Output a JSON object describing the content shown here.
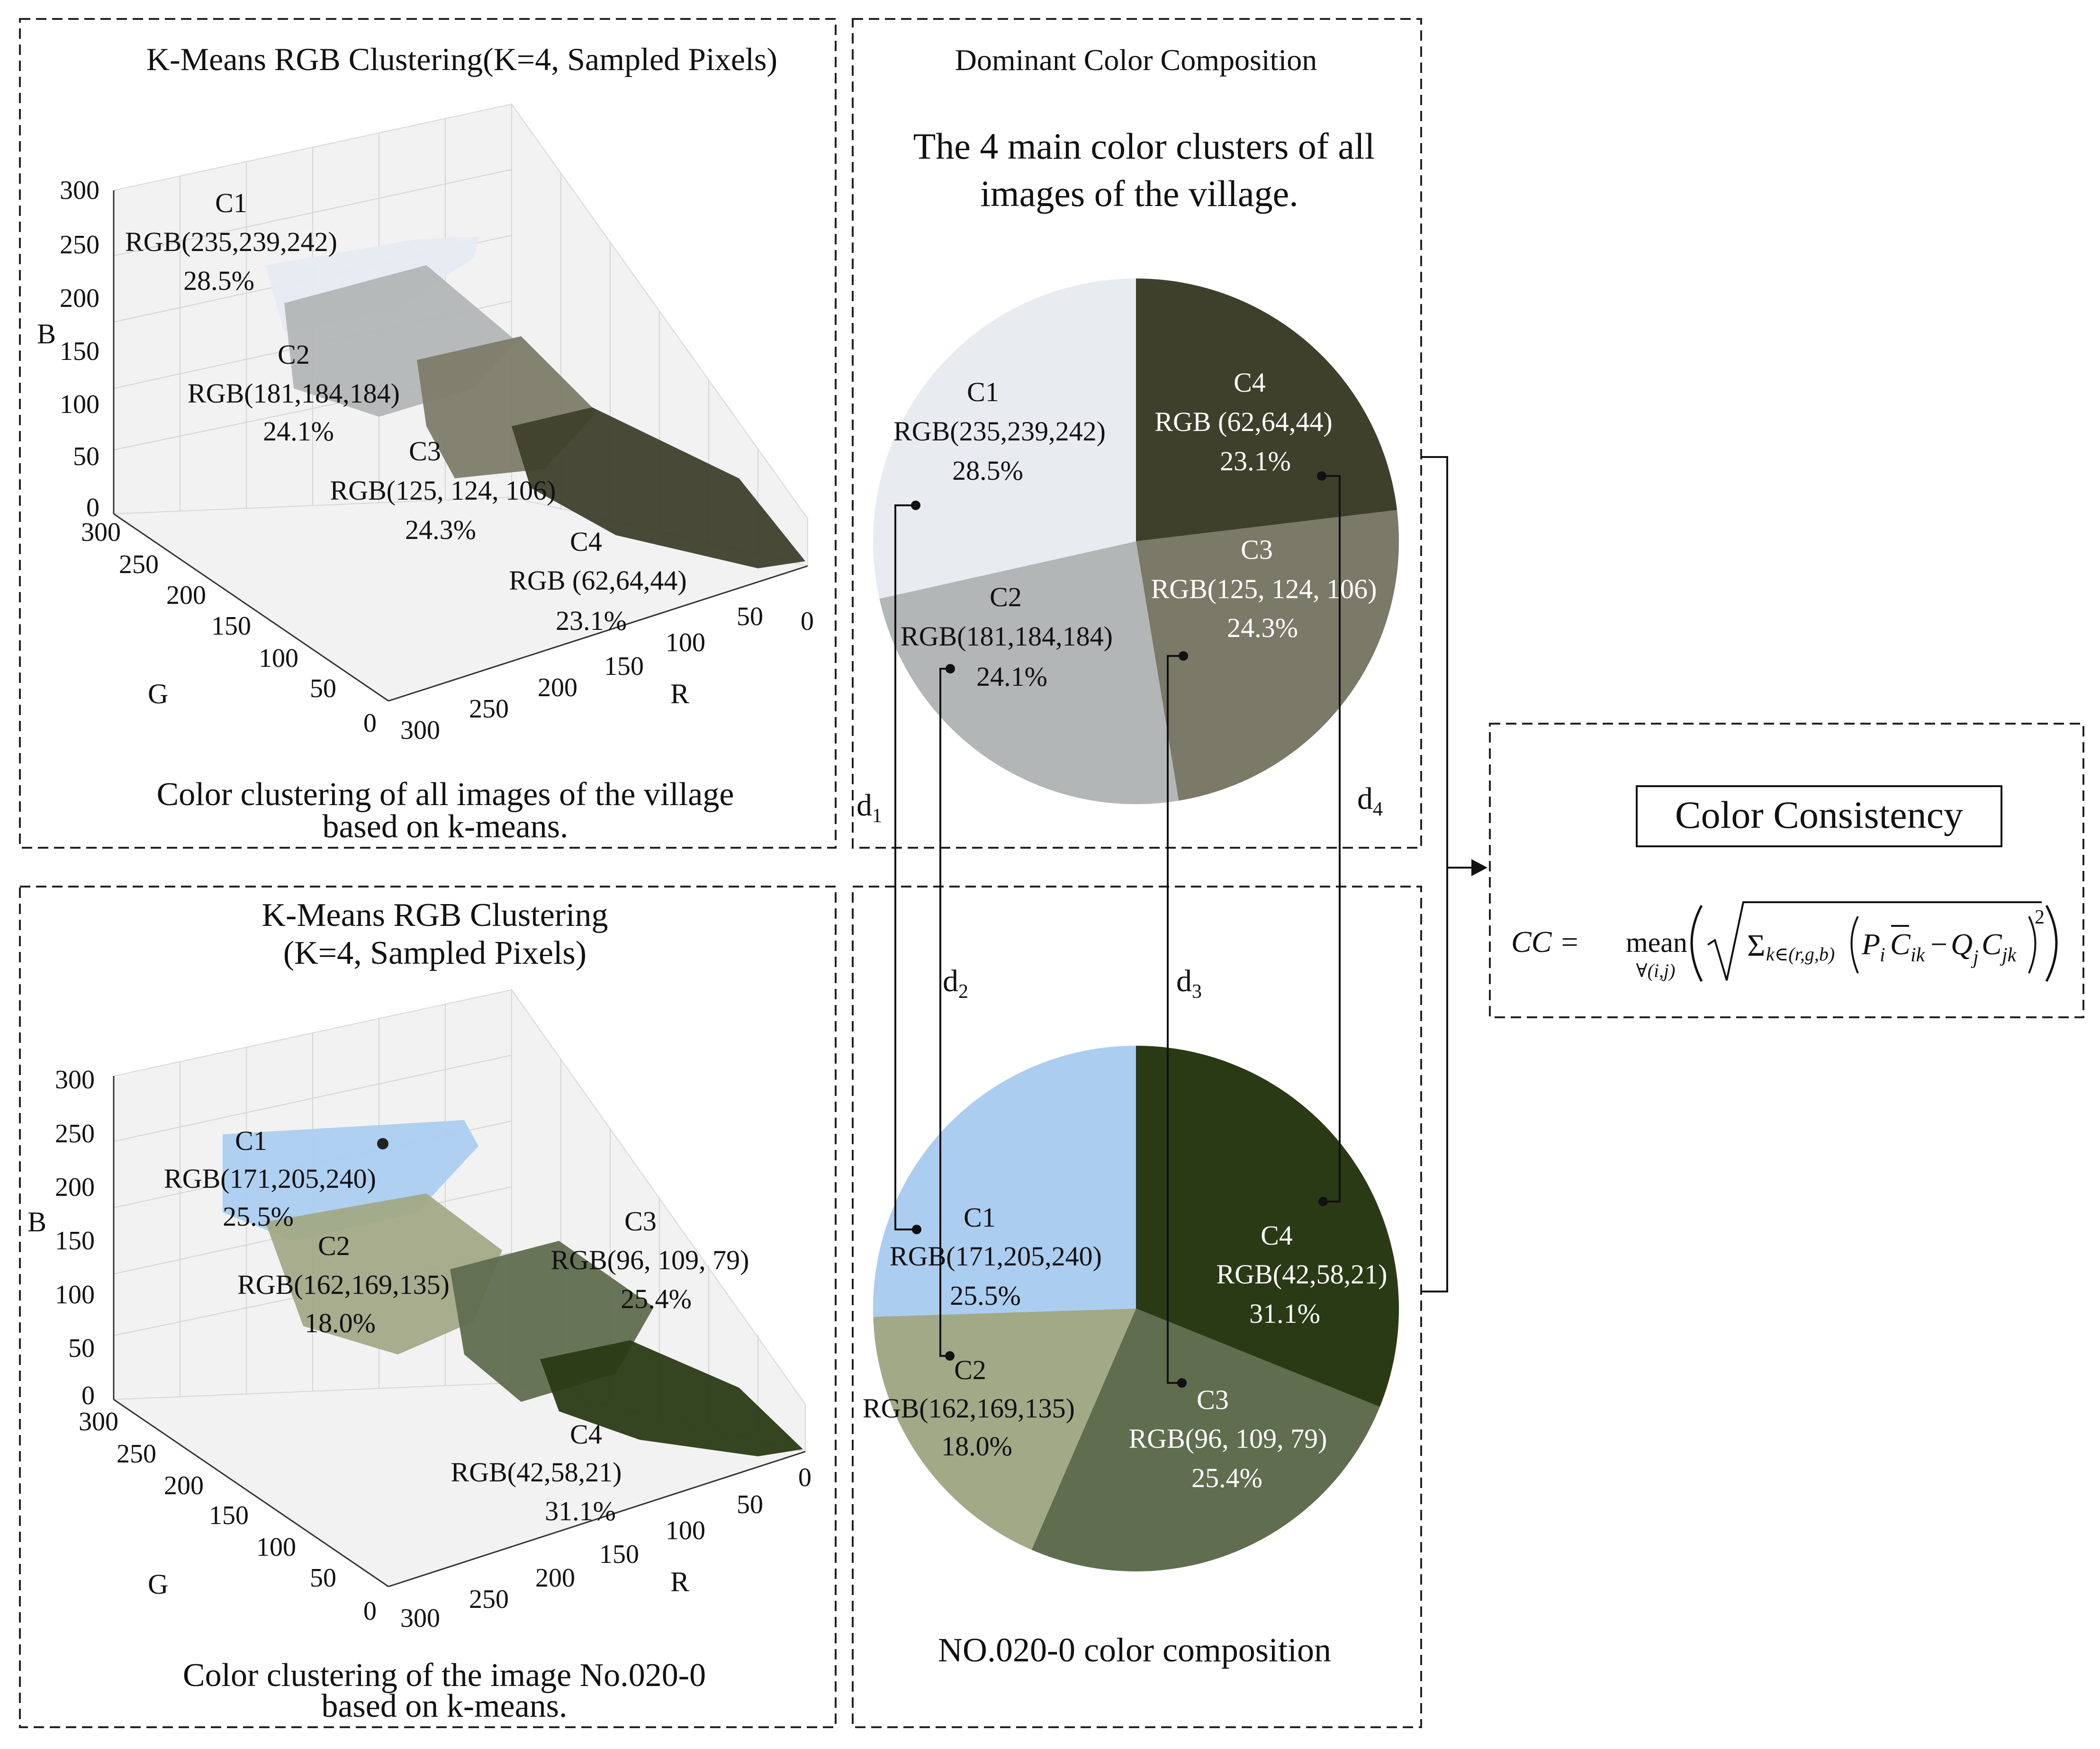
{
  "top_scatter": {
    "title": "K-Means RGB Clustering(K=4, Sampled Pixels)",
    "axis_b": "B",
    "axis_g": "G",
    "axis_r": "R",
    "b_ticks": [
      "300",
      "250",
      "200",
      "150",
      "100",
      "50",
      "0"
    ],
    "g_ticks": [
      "300",
      "250",
      "200",
      "150",
      "100",
      "50",
      "0"
    ],
    "r_ticks": [
      "300",
      "250",
      "200",
      "150",
      "100",
      "50",
      "0"
    ],
    "clusters": [
      {
        "name": "C1",
        "rgb": "RGB(235,239,242)",
        "pct": "28.5%",
        "color": "#ebeff2"
      },
      {
        "name": "C2",
        "rgb": "RGB(181,184,184)",
        "pct": "24.1%",
        "color": "#b5b8b8"
      },
      {
        "name": "C3",
        "rgb": "RGB(125, 124, 106)",
        "pct": "24.3%",
        "color": "#7d7c6a"
      },
      {
        "name": "C4",
        "rgb": "RGB (62,64,44)",
        "pct": "23.1%",
        "color": "#3e402c"
      }
    ],
    "caption_line1": "Color clustering of all images of the village",
    "caption_line2": "based on k-means."
  },
  "bottom_scatter": {
    "title_line1": "K-Means RGB Clustering",
    "title_line2": "(K=4, Sampled Pixels)",
    "axis_b": "B",
    "axis_g": "G",
    "axis_r": "R",
    "b_ticks": [
      "300",
      "250",
      "200",
      "150",
      "100",
      "50",
      "0"
    ],
    "g_ticks": [
      "300",
      "250",
      "200",
      "150",
      "100",
      "50",
      "0"
    ],
    "r_ticks": [
      "300",
      "250",
      "200",
      "150",
      "100",
      "50",
      "0"
    ],
    "clusters": [
      {
        "name": "C1",
        "rgb": "RGB(171,205,240)",
        "pct": "25.5%",
        "color": "#abcdf0"
      },
      {
        "name": "C2",
        "rgb": "RGB(162,169,135)",
        "pct": "18.0%",
        "color": "#a2a987"
      },
      {
        "name": "C3",
        "rgb": "RGB(96, 109, 79)",
        "pct": "25.4%",
        "color": "#606d4f"
      },
      {
        "name": "C4",
        "rgb": "RGB(42,58,21)",
        "pct": "31.1%",
        "color": "#2a3a15"
      }
    ],
    "caption_line1": "Color clustering of the image No.020-0",
    "caption_line2": "based on k-means."
  },
  "top_pie": {
    "header": "Dominant Color Composition",
    "subtitle_line1": "The 4 main color clusters of all",
    "subtitle_line2": "images of the village.",
    "slices": [
      {
        "name": "C1",
        "rgb": "RGB(235,239,242)",
        "pct": "28.5%",
        "value": 28.5,
        "color": "#e8ecf1"
      },
      {
        "name": "C2",
        "rgb": "RGB(181,184,184)",
        "pct": "24.1%",
        "value": 24.1,
        "color": "#b3b6b6"
      },
      {
        "name": "C3",
        "rgb": "RGB(125, 124, 106)",
        "pct": "24.3%",
        "value": 24.3,
        "color": "#7b7a68"
      },
      {
        "name": "C4",
        "rgb": "RGB (62,64,44)",
        "pct": "23.1%",
        "value": 23.1,
        "color": "#3e402c"
      }
    ]
  },
  "bottom_pie": {
    "caption": "NO.020-0 color composition",
    "slices": [
      {
        "name": "C1",
        "rgb": "RGB(171,205,240)",
        "pct": "25.5%",
        "value": 25.5,
        "color": "#abcdf0"
      },
      {
        "name": "C2",
        "rgb": "RGB(162,169,135)",
        "pct": "18.0%",
        "value": 18.0,
        "color": "#a2a987"
      },
      {
        "name": "C3",
        "rgb": "RGB(96, 109, 79)",
        "pct": "25.4%",
        "value": 25.4,
        "color": "#606d4f"
      },
      {
        "name": "C4",
        "rgb": "RGB(42,58,21)",
        "pct": "31.1%",
        "value": 31.1,
        "color": "#2a3a15"
      }
    ]
  },
  "distances": {
    "d1": "d",
    "d1_sub": "1",
    "d2": "d",
    "d2_sub": "2",
    "d3": "d",
    "d3_sub": "3",
    "d4": "d",
    "d4_sub": "4"
  },
  "consistency": {
    "title": "Color Consistency",
    "formula_lhs": "CC =",
    "formula_mean": "mean",
    "formula_under": "∀(i,j)",
    "formula_sum": "Σ",
    "formula_sum_sub": "k∈(r,g,b)",
    "formula_p": "P",
    "formula_i": "i",
    "formula_c": "C",
    "formula_ik": "ik",
    "formula_minus": "−",
    "formula_q": "Q",
    "formula_j": "j",
    "formula_jk": "jk",
    "formula_sq": "2"
  }
}
